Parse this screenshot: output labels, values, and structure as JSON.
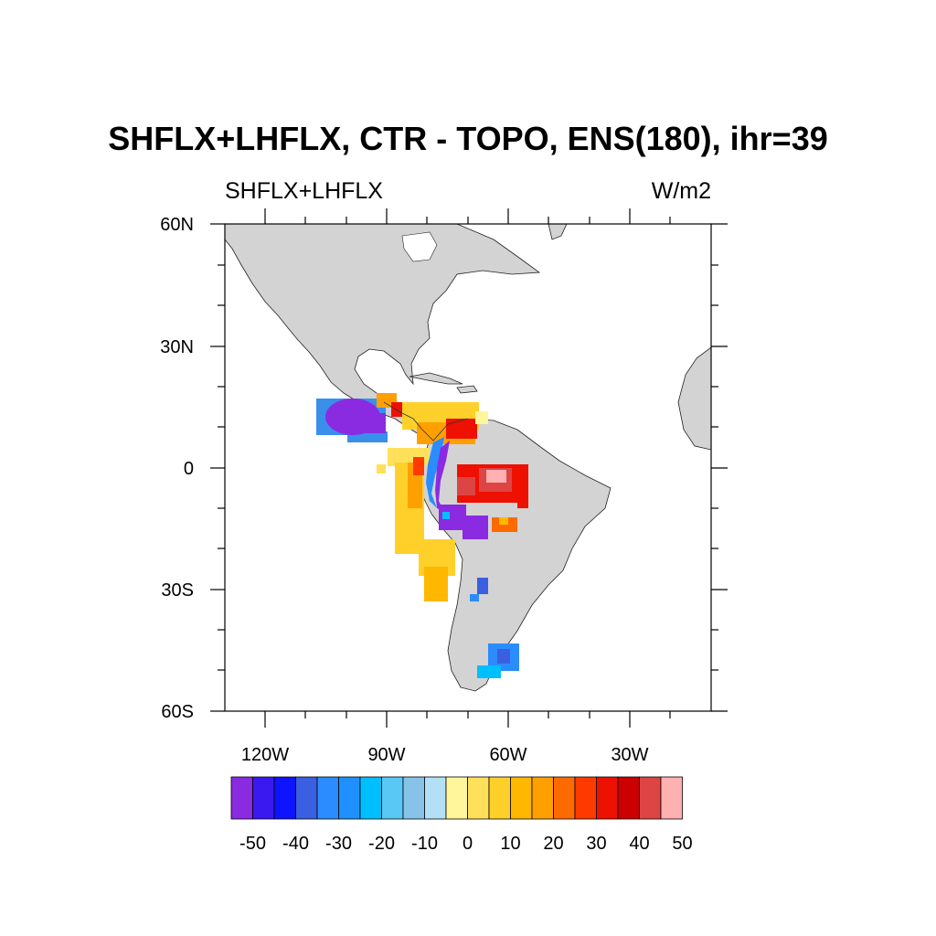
{
  "title": "SHFLX+LHFLX, CTR - TOPO, ENS(180), ihr=39",
  "left_label": "SHFLX+LHFLX",
  "right_label": "W/m2",
  "lat_ticks": [
    "60N",
    "30N",
    "0",
    "30S",
    "60S"
  ],
  "lon_ticks": [
    "120W",
    "90W",
    "60W",
    "30W"
  ],
  "colorbar": {
    "labels": [
      "-50",
      "-40",
      "-30",
      "-20",
      "-10",
      "0",
      "10",
      "20",
      "30",
      "40",
      "50"
    ],
    "colors": [
      "#8a2be2",
      "#3a19f0",
      "#0e14ff",
      "#3a5fe0",
      "#2b8cff",
      "#1e90ff",
      "#00bfff",
      "#5ac8f5",
      "#87c3e8",
      "#b4e0f5",
      "#fff59a",
      "#ffe05a",
      "#ffd02a",
      "#ffb700",
      "#ffa000",
      "#ff6a00",
      "#ff3a00",
      "#ee1000",
      "#cc0000",
      "#dd4444",
      "#ffb0b0"
    ]
  },
  "colors": {
    "land": "#d3d3d3",
    "ocean": "#ffffff"
  }
}
